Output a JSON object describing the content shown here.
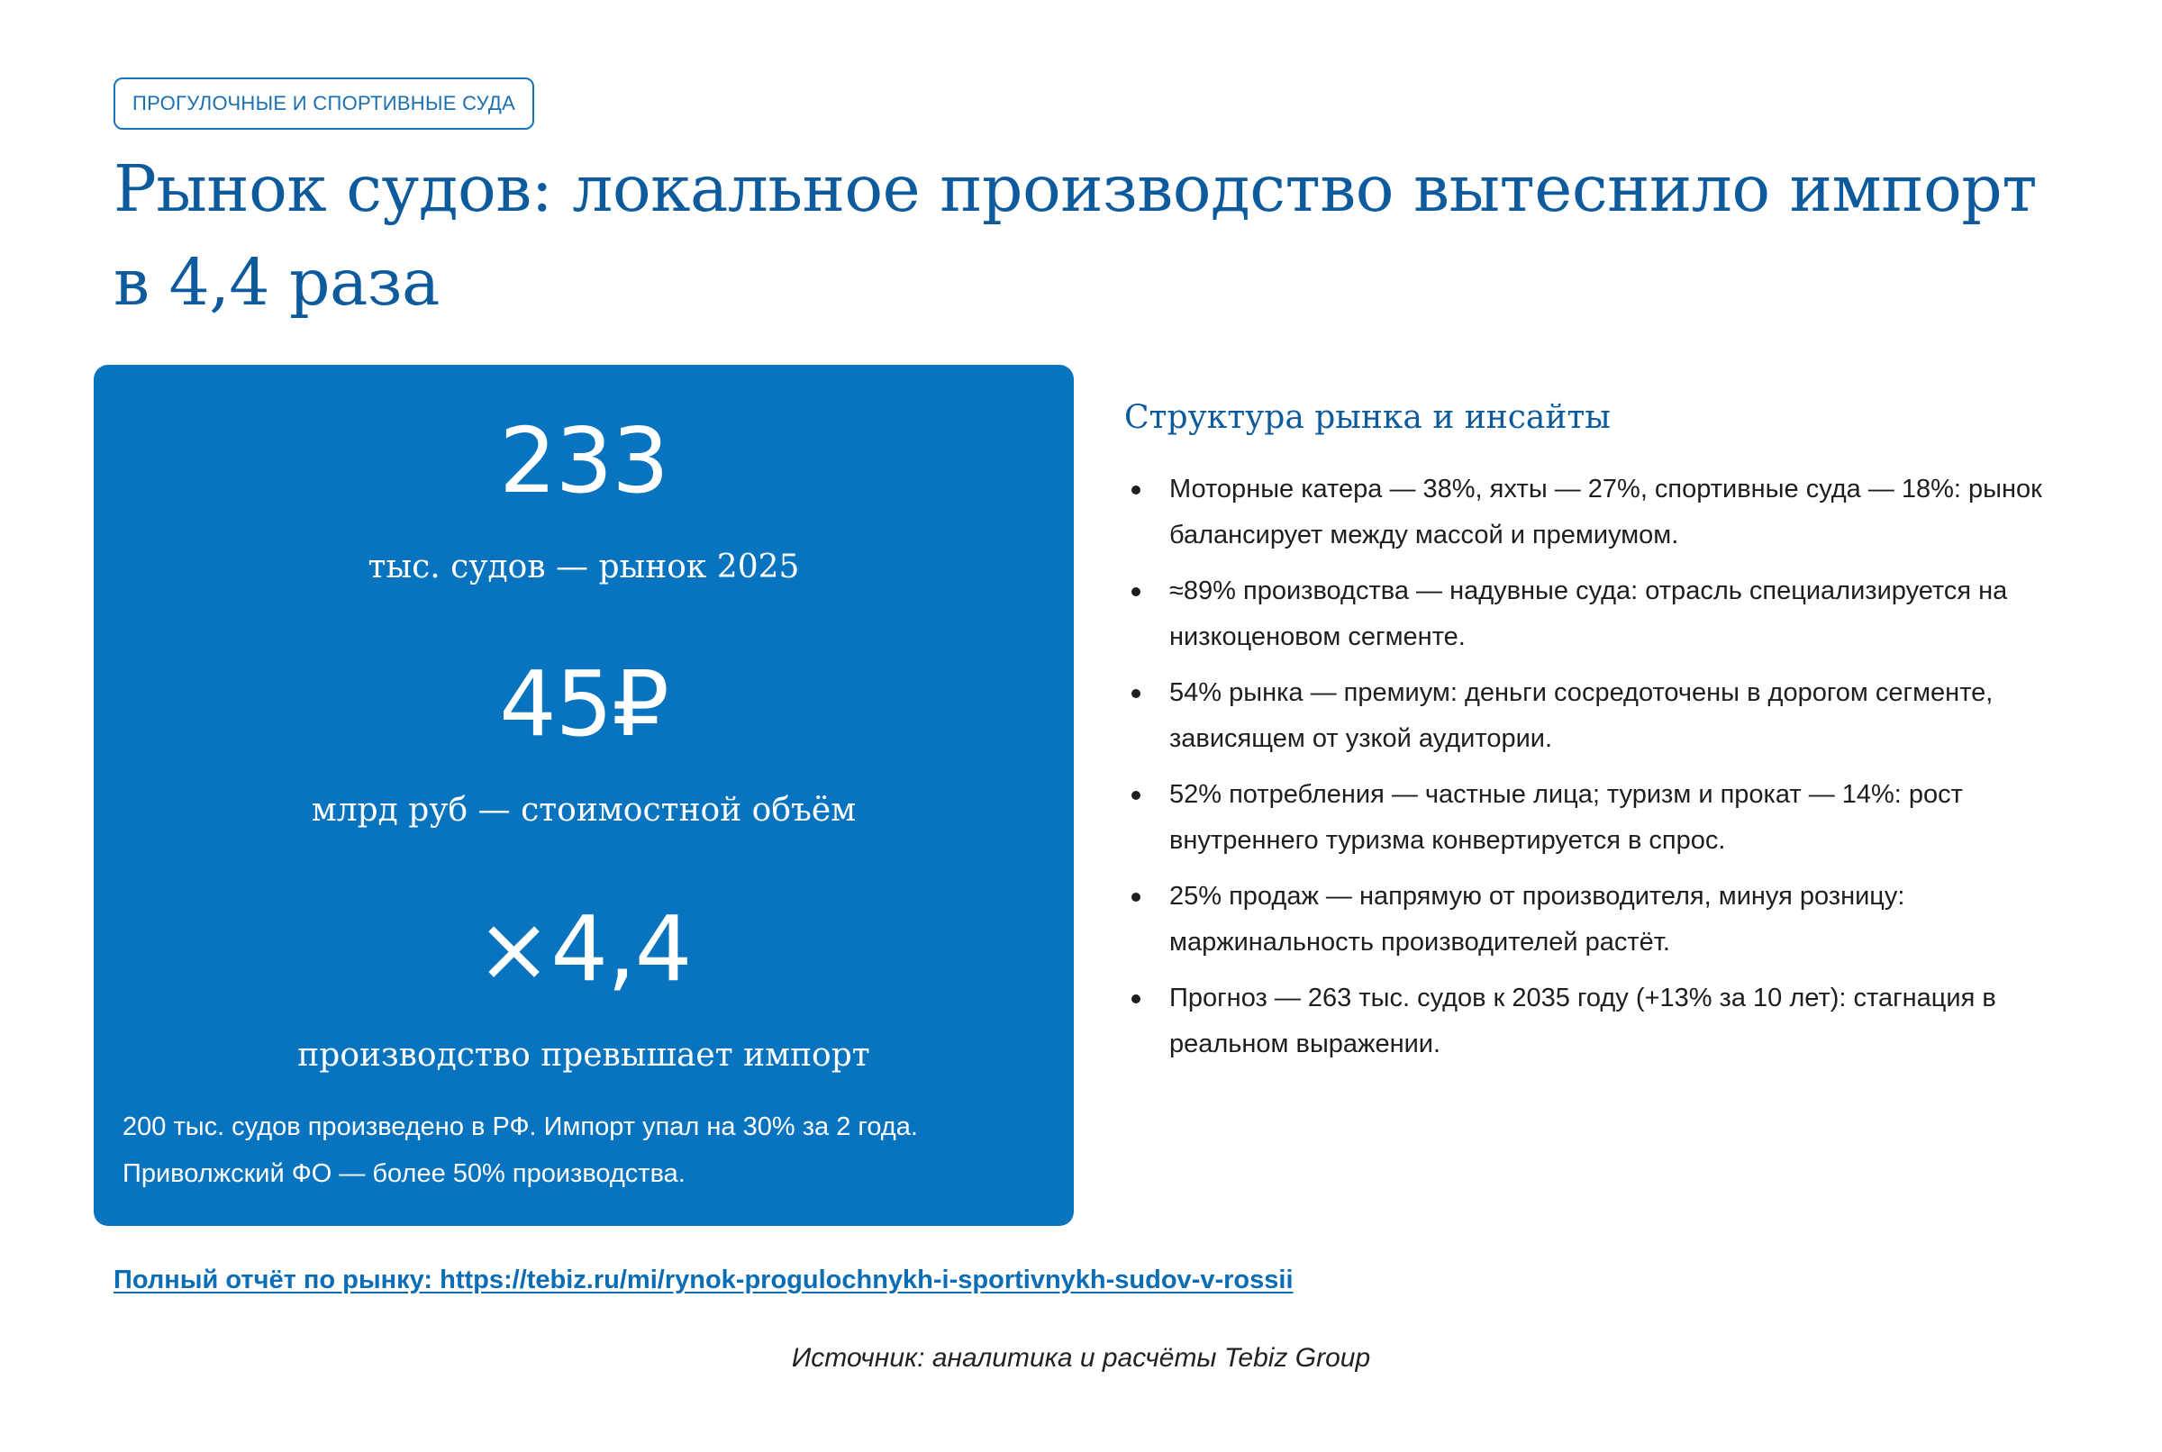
{
  "tag": "ПРОГУЛОЧНЫЕ И СПОРТИВНЫЕ СУДА",
  "title": "Рынок судов: локальное производство вытеснило импорт в 4,4 раза",
  "stats": [
    {
      "value": "233",
      "label": "тыс. судов — рынок 2025"
    },
    {
      "value": "45₽",
      "label": "млрд руб — стоимостной объём"
    },
    {
      "value": "×4,4",
      "label": "производство превышает импорт"
    }
  ],
  "stats_note": "200 тыс. судов произведено в РФ. Импорт упал на 30% за 2 года. Приволжский ФО — более 50% производства.",
  "insights": {
    "title": "Структура рынка и инсайты",
    "items": [
      "Моторные катера — 38%, яхты — 27%, спортивные суда — 18%: рынок балансирует между массой и премиумом.",
      "≈89% производства — надувные суда: отрасль специализируется на низкоценовом сегменте.",
      "54% рынка — премиум: деньги сосредоточены в дорогом сегменте, зависящем от узкой аудитории.",
      "52% потребления — частные лица; туризм и прокат — 14%: рост внутреннего туризма конвертируется в спрос.",
      "25% продаж — напрямую от производителя, минуя розницу: маржинальность производителей растёт.",
      "Прогноз — 263 тыс. судов к 2035 году (+13% за 10 лет): стагнация в реальном выражении."
    ]
  },
  "link": {
    "text": "Полный отчёт по рынку: https://tebiz.ru/mi/rynok-progulochnykh-i-sportivnykh-sudov-v-rossii"
  },
  "source": "Источник: аналитика и расчёты Tebiz Group",
  "colors": {
    "brand_blue": "#0874bf",
    "title_blue": "#0d5a9c",
    "link_blue": "#0b6db5"
  }
}
